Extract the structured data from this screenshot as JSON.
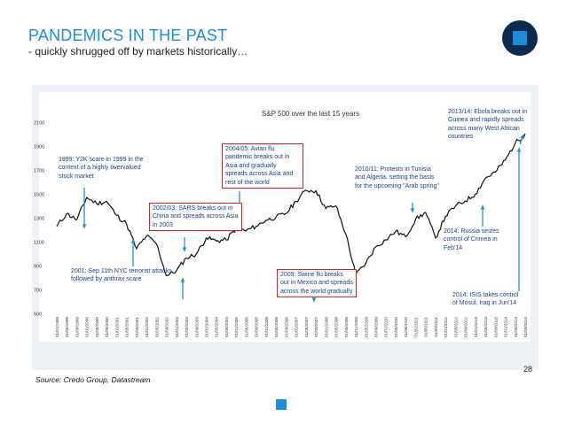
{
  "header": {
    "title": "PANDEMICS IN THE PAST",
    "subtitle": "- quickly shrugged off by markets historically…"
  },
  "brand": {
    "logo_icon": "square-in-circle-logo-icon",
    "colors": {
      "accent": "#1a8fd8",
      "dark": "#0d2b4e",
      "line": "#111111",
      "arrow": "#1a8fd8",
      "highlight": "#e02020"
    }
  },
  "footer": {
    "source": "Source: Credo Group, Datastream",
    "page_number": "28"
  },
  "annotations": {
    "y2k": "1999: Y2K scare in 1999 in the context of a highly overvalued stock market",
    "sep11": "2001: Sep 11th NYC terrorist attacks followed by anthrax scare",
    "sars": "2002/03: SARS breaks out in China and spreads across Asia in 2003",
    "avian": "2004/05: Avian flu pandemic breaks out in Asia and gradually spreads across Asia and rest of the world",
    "swine": "2009: Swine flu breaks out in Mexico and spreads across the world gradually",
    "arab": "2010/11: Protests in Tunisia and Algeria, setting the basis for the upcoming \"Arab spring\"",
    "ebola": "2013/14: Ebola breaks out in Guinea and rapidly spreads across many West African countries",
    "crimea": "2014: Russia seizes control of Crimea in Feb'14",
    "isis": "2014: ISIS takes control of Mosul, Iraq in Jun'14"
  },
  "chart_data": {
    "type": "line",
    "title": "S&P 500 over the last 15 years",
    "xlabel": "",
    "ylabel": "",
    "ylim": [
      500,
      2100
    ],
    "yticks": [
      500,
      700,
      900,
      1100,
      1300,
      1500,
      1700,
      1900,
      2100
    ],
    "grid": false,
    "x_tick_labels": [
      "01/01/1999",
      "01/05/1999",
      "01/09/1999",
      "01/01/2000",
      "01/05/2000",
      "01/09/2000",
      "01/01/2001",
      "01/05/2001",
      "01/09/2001",
      "01/01/2002",
      "01/05/2002",
      "01/09/2002",
      "01/01/2003",
      "01/05/2003",
      "01/09/2003",
      "01/01/2004",
      "01/05/2004",
      "01/09/2004",
      "01/01/2005",
      "01/05/2005",
      "01/09/2005",
      "01/01/2006",
      "01/05/2006",
      "01/09/2006",
      "01/01/2007",
      "01/05/2007",
      "01/09/2007",
      "01/01/2008",
      "01/05/2008",
      "01/09/2008",
      "01/01/2009",
      "01/05/2009",
      "01/09/2009",
      "01/01/2010",
      "01/05/2010",
      "01/09/2010",
      "01/01/2011",
      "01/05/2011",
      "01/09/2011",
      "01/01/2012",
      "01/05/2012",
      "01/09/2012",
      "01/01/2013",
      "01/05/2013",
      "01/09/2013",
      "01/01/2014",
      "01/05/2014",
      "01/09/2014"
    ],
    "series": [
      {
        "name": "S&P 500",
        "values": [
          1229,
          1335,
          1283,
          1469,
          1420,
          1436,
          1320,
          1249,
          1041,
          1148,
          1084,
          815,
          856,
          964,
          996,
          1131,
          1107,
          1115,
          1212,
          1191,
          1229,
          1280,
          1305,
          1335,
          1438,
          1530,
          1526,
          1378,
          1400,
          1164,
          825,
          919,
          1057,
          1115,
          1187,
          1141,
          1286,
          1345,
          1131,
          1312,
          1398,
          1441,
          1498,
          1631,
          1682,
          1782,
          1924,
          2003
        ]
      }
    ]
  }
}
